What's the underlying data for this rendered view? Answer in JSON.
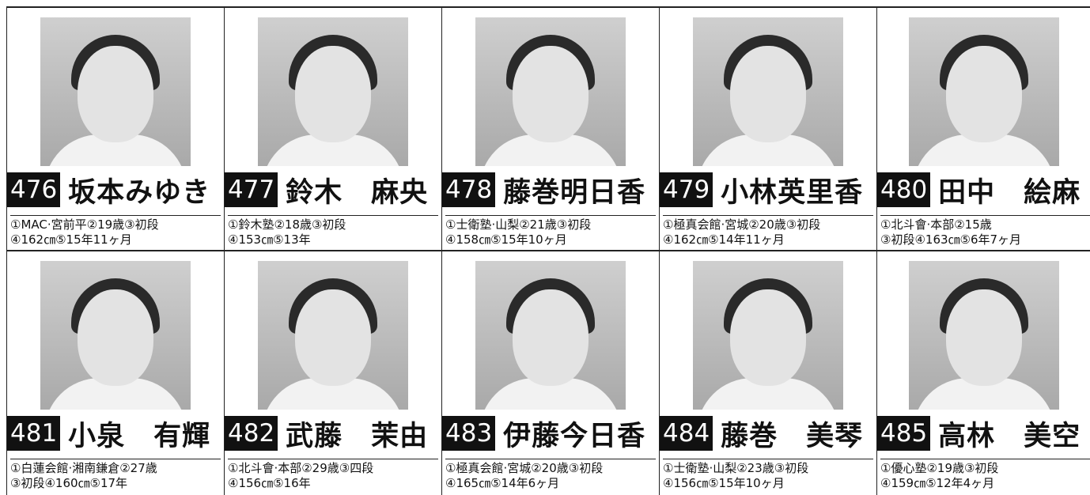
{
  "profiles": [
    {
      "number": "476",
      "name": "坂本みゆき",
      "info": [
        "①MAC·宮前平②19歳③初段",
        "④162㎝⑤15年11ヶ月"
      ]
    },
    {
      "number": "477",
      "name": "鈴木　麻央",
      "info": [
        "①鈴木塾②18歳③初段",
        "④153㎝⑤13年"
      ]
    },
    {
      "number": "478",
      "name": "藤巻明日香",
      "info": [
        "①士衛塾·山梨②21歳③初段",
        "④158㎝⑤15年10ヶ月"
      ]
    },
    {
      "number": "479",
      "name": "小林英里香",
      "info": [
        "①極真会館·宮城②20歳③初段",
        "④162㎝⑤14年11ヶ月"
      ]
    },
    {
      "number": "480",
      "name": "田中　絵麻",
      "info": [
        "①北斗會·本部②15歳",
        "③初段④163㎝⑤6年7ヶ月"
      ]
    },
    {
      "number": "481",
      "name": "小泉　有輝",
      "info": [
        "①白蓮会館·湘南鎌倉②27歳",
        "③初段④160㎝⑤17年"
      ]
    },
    {
      "number": "482",
      "name": "武藤　茉由",
      "info": [
        "①北斗會·本部②29歳③四段",
        "④156㎝⑤16年"
      ]
    },
    {
      "number": "483",
      "name": "伊藤今日香",
      "info": [
        "①極真会館·宮城②20歳③初段",
        "④165㎝⑤14年6ヶ月"
      ]
    },
    {
      "number": "484",
      "name": "藤巻　美琴",
      "info": [
        "①士衛塾·山梨②23歳③初段",
        "④156㎝⑤15年10ヶ月"
      ]
    },
    {
      "number": "485",
      "name": "高林　美空",
      "info": [
        "①優心塾②19歳③初段",
        "④159㎝⑤12年4ヶ月"
      ]
    }
  ]
}
